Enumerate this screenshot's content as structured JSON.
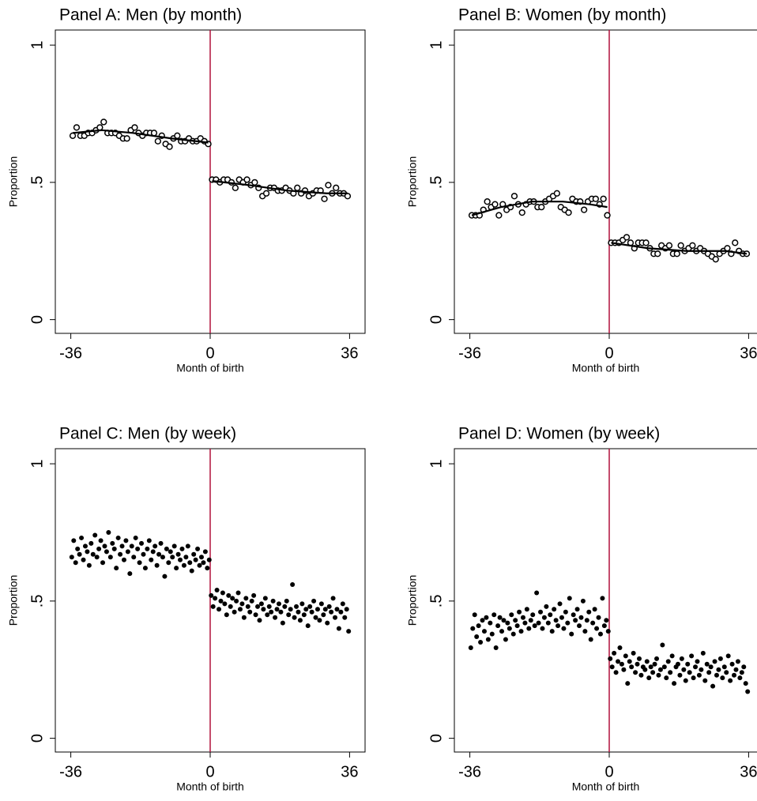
{
  "chart_data": [
    {
      "type": "scatter",
      "title": "Panel A: Men (by month)",
      "x_label": "Month of birth",
      "y_label": "Proportion",
      "xlim": [
        -40,
        40
      ],
      "ylim": [
        -0.05,
        1.055
      ],
      "xticks": [
        -36,
        0,
        36
      ],
      "yticks": [
        0,
        {
          "value": 0.5,
          "label": ".5"
        },
        1
      ],
      "cutoff_line": {
        "x": 0,
        "color": "#b0103c"
      },
      "series": [
        {
          "marker": "hollow",
          "color": "#000000",
          "x": [
            -35.5,
            -34.5,
            -33.5,
            -32.5,
            -31.5,
            -30.5,
            -29.5,
            -28.5,
            -27.5,
            -26.5,
            -25.5,
            -24.5,
            -23.5,
            -22.5,
            -21.5,
            -20.5,
            -19.5,
            -18.5,
            -17.5,
            -16.5,
            -15.5,
            -14.5,
            -13.5,
            -12.5,
            -11.5,
            -10.5,
            -9.5,
            -8.5,
            -7.5,
            -6.5,
            -5.5,
            -4.5,
            -3.5,
            -2.5,
            -1.5,
            -0.5,
            0.5,
            1.5,
            2.5,
            3.5,
            4.5,
            5.5,
            6.5,
            7.5,
            8.5,
            9.5,
            10.5,
            11.5,
            12.5,
            13.5,
            14.5,
            15.5,
            16.5,
            17.5,
            18.5,
            19.5,
            20.5,
            21.5,
            22.5,
            23.5,
            24.5,
            25.5,
            26.5,
            27.5,
            28.5,
            29.5,
            30.5,
            31.5,
            32.5,
            33.5,
            34.5,
            35.5
          ],
          "values": [
            0.67,
            0.7,
            0.67,
            0.67,
            0.68,
            0.68,
            0.69,
            0.7,
            0.72,
            0.68,
            0.68,
            0.68,
            0.67,
            0.66,
            0.66,
            0.69,
            0.7,
            0.68,
            0.67,
            0.68,
            0.68,
            0.68,
            0.65,
            0.67,
            0.64,
            0.63,
            0.66,
            0.67,
            0.65,
            0.65,
            0.66,
            0.65,
            0.65,
            0.66,
            0.65,
            0.64,
            0.51,
            0.51,
            0.5,
            0.51,
            0.51,
            0.5,
            0.48,
            0.51,
            0.5,
            0.51,
            0.49,
            0.5,
            0.48,
            0.45,
            0.46,
            0.48,
            0.48,
            0.47,
            0.47,
            0.48,
            0.47,
            0.46,
            0.48,
            0.46,
            0.47,
            0.45,
            0.46,
            0.47,
            0.47,
            0.44,
            0.49,
            0.46,
            0.48,
            0.46,
            0.46,
            0.45
          ]
        },
        {
          "marker": "line",
          "color": "#000000",
          "x": [
            -35.5,
            -28,
            -20,
            -10,
            -0.5,
            0,
            0.5,
            10,
            20,
            30,
            35.5
          ],
          "values": [
            0.68,
            0.69,
            0.68,
            0.66,
            0.645,
            null,
            0.505,
            0.49,
            0.47,
            0.46,
            0.46
          ]
        }
      ]
    },
    {
      "type": "scatter",
      "title": "Panel B: Women (by month)",
      "x_label": "Month of birth",
      "y_label": "Proportion",
      "xlim": [
        -40,
        40
      ],
      "ylim": [
        -0.05,
        1.055
      ],
      "xticks": [
        -36,
        0,
        36
      ],
      "yticks": [
        0,
        {
          "value": 0.5,
          "label": ".5"
        },
        1
      ],
      "cutoff_line": {
        "x": 0,
        "color": "#b0103c"
      },
      "series": [
        {
          "marker": "hollow",
          "color": "#000000",
          "x": [
            -35.5,
            -34.5,
            -33.5,
            -32.5,
            -31.5,
            -30.5,
            -29.5,
            -28.5,
            -27.5,
            -26.5,
            -25.5,
            -24.5,
            -23.5,
            -22.5,
            -21.5,
            -20.5,
            -19.5,
            -18.5,
            -17.5,
            -16.5,
            -15.5,
            -14.5,
            -13.5,
            -12.5,
            -11.5,
            -10.5,
            -9.5,
            -8.5,
            -7.5,
            -6.5,
            -5.5,
            -4.5,
            -3.5,
            -2.5,
            -1.5,
            -0.5,
            0.5,
            1.5,
            2.5,
            3.5,
            4.5,
            5.5,
            6.5,
            7.5,
            8.5,
            9.5,
            10.5,
            11.5,
            12.5,
            13.5,
            14.5,
            15.5,
            16.5,
            17.5,
            18.5,
            19.5,
            20.5,
            21.5,
            22.5,
            23.5,
            24.5,
            25.5,
            26.5,
            27.5,
            28.5,
            29.5,
            30.5,
            31.5,
            32.5,
            33.5,
            34.5,
            35.5
          ],
          "values": [
            0.38,
            0.38,
            0.38,
            0.4,
            0.43,
            0.41,
            0.42,
            0.38,
            0.42,
            0.4,
            0.41,
            0.45,
            0.42,
            0.39,
            0.42,
            0.43,
            0.43,
            0.41,
            0.41,
            0.43,
            0.44,
            0.45,
            0.46,
            0.41,
            0.4,
            0.39,
            0.44,
            0.43,
            0.43,
            0.4,
            0.43,
            0.44,
            0.44,
            0.42,
            0.44,
            0.38,
            0.28,
            0.28,
            0.28,
            0.29,
            0.3,
            0.28,
            0.26,
            0.28,
            0.28,
            0.28,
            0.26,
            0.24,
            0.24,
            0.27,
            0.26,
            0.27,
            0.24,
            0.24,
            0.27,
            0.25,
            0.26,
            0.27,
            0.25,
            0.26,
            0.25,
            0.24,
            0.23,
            0.22,
            0.24,
            0.25,
            0.26,
            0.24,
            0.28,
            0.25,
            0.24,
            0.24
          ]
        },
        {
          "marker": "line",
          "color": "#000000",
          "x": [
            -35.5,
            -28,
            -20,
            -12,
            -5,
            -0.5,
            0,
            0.5,
            10,
            20,
            30,
            35.5
          ],
          "values": [
            0.38,
            0.41,
            0.43,
            0.43,
            0.42,
            0.41,
            null,
            0.28,
            0.26,
            0.25,
            0.25,
            0.24
          ]
        }
      ]
    },
    {
      "type": "scatter",
      "title": "Panel C: Men (by week)",
      "x_label": "Month of birth",
      "y_label": "Proportion",
      "xlim": [
        -40,
        40
      ],
      "ylim": [
        -0.05,
        1.055
      ],
      "xticks": [
        -36,
        0,
        36
      ],
      "yticks": [
        0,
        {
          "value": 0.5,
          "label": ".5"
        },
        1
      ],
      "cutoff_line": {
        "x": 0,
        "color": "#b0103c"
      },
      "series": [
        {
          "marker": "filled",
          "color": "#000000",
          "x": [
            -35.75,
            -35.25,
            -34.75,
            -34.25,
            -33.75,
            -33.25,
            -32.75,
            -32.25,
            -31.75,
            -31.25,
            -30.75,
            -30.25,
            -29.75,
            -29.25,
            -28.75,
            -28.25,
            -27.75,
            -27.25,
            -26.75,
            -26.25,
            -25.75,
            -25.25,
            -24.75,
            -24.25,
            -23.75,
            -23.25,
            -22.75,
            -22.25,
            -21.75,
            -21.25,
            -20.75,
            -20.25,
            -19.75,
            -19.25,
            -18.75,
            -18.25,
            -17.75,
            -17.25,
            -16.75,
            -16.25,
            -15.75,
            -15.25,
            -14.75,
            -14.25,
            -13.75,
            -13.25,
            -12.75,
            -12.25,
            -11.75,
            -11.25,
            -10.75,
            -10.25,
            -9.75,
            -9.25,
            -8.75,
            -8.25,
            -7.75,
            -7.25,
            -6.75,
            -6.25,
            -5.75,
            -5.25,
            -4.75,
            -4.25,
            -3.75,
            -3.25,
            -2.75,
            -2.25,
            -1.75,
            -1.25,
            -0.75,
            -0.25,
            0.25,
            0.75,
            1.25,
            1.75,
            2.25,
            2.75,
            3.25,
            3.75,
            4.25,
            4.75,
            5.25,
            5.75,
            6.25,
            6.75,
            7.25,
            7.75,
            8.25,
            8.75,
            9.25,
            9.75,
            10.25,
            10.75,
            11.25,
            11.75,
            12.25,
            12.75,
            13.25,
            13.75,
            14.25,
            14.75,
            15.25,
            15.75,
            16.25,
            16.75,
            17.25,
            17.75,
            18.25,
            18.75,
            19.25,
            19.75,
            20.25,
            20.75,
            21.25,
            21.75,
            22.25,
            22.75,
            23.25,
            23.75,
            24.25,
            24.75,
            25.25,
            25.75,
            26.25,
            26.75,
            27.25,
            27.75,
            28.25,
            28.75,
            29.25,
            29.75,
            30.25,
            30.75,
            31.25,
            31.75,
            32.25,
            32.75,
            33.25,
            33.75,
            34.25,
            34.75,
            35.25,
            35.75
          ],
          "values": [
            0.66,
            0.72,
            0.64,
            0.69,
            0.67,
            0.73,
            0.65,
            0.7,
            0.68,
            0.63,
            0.71,
            0.67,
            0.74,
            0.66,
            0.69,
            0.72,
            0.64,
            0.7,
            0.68,
            0.75,
            0.66,
            0.71,
            0.69,
            0.62,
            0.73,
            0.67,
            0.7,
            0.65,
            0.72,
            0.68,
            0.6,
            0.7,
            0.66,
            0.73,
            0.69,
            0.64,
            0.71,
            0.67,
            0.62,
            0.69,
            0.72,
            0.65,
            0.68,
            0.7,
            0.63,
            0.67,
            0.71,
            0.66,
            0.59,
            0.69,
            0.64,
            0.68,
            0.66,
            0.7,
            0.62,
            0.67,
            0.65,
            0.69,
            0.63,
            0.66,
            0.7,
            0.64,
            0.61,
            0.67,
            0.65,
            0.69,
            0.63,
            0.66,
            0.64,
            0.68,
            0.62,
            0.65,
            0.52,
            0.48,
            0.51,
            0.54,
            0.47,
            0.5,
            0.53,
            0.49,
            0.45,
            0.52,
            0.48,
            0.51,
            0.46,
            0.5,
            0.53,
            0.47,
            0.49,
            0.44,
            0.51,
            0.48,
            0.46,
            0.5,
            0.52,
            0.45,
            0.48,
            0.43,
            0.49,
            0.47,
            0.51,
            0.45,
            0.48,
            0.46,
            0.5,
            0.44,
            0.47,
            0.49,
            0.46,
            0.42,
            0.48,
            0.5,
            0.45,
            0.47,
            0.56,
            0.44,
            0.48,
            0.46,
            0.43,
            0.49,
            0.45,
            0.47,
            0.41,
            0.48,
            0.46,
            0.5,
            0.44,
            0.47,
            0.43,
            0.49,
            0.45,
            0.47,
            0.42,
            0.48,
            0.46,
            0.51,
            0.44,
            0.47,
            0.4,
            0.46,
            0.49,
            0.44,
            0.47,
            0.39
          ]
        }
      ]
    },
    {
      "type": "scatter",
      "title": "Panel D: Women (by week)",
      "x_label": "Month of birth",
      "y_label": "Proportion",
      "xlim": [
        -40,
        40
      ],
      "ylim": [
        -0.05,
        1.055
      ],
      "xticks": [
        -36,
        0,
        36
      ],
      "yticks": [
        0,
        {
          "value": 0.5,
          "label": ".5"
        },
        1
      ],
      "cutoff_line": {
        "x": 0,
        "color": "#b0103c"
      },
      "series": [
        {
          "marker": "filled",
          "color": "#000000",
          "x": [
            -35.75,
            -35.25,
            -34.75,
            -34.25,
            -33.75,
            -33.25,
            -32.75,
            -32.25,
            -31.75,
            -31.25,
            -30.75,
            -30.25,
            -29.75,
            -29.25,
            -28.75,
            -28.25,
            -27.75,
            -27.25,
            -26.75,
            -26.25,
            -25.75,
            -25.25,
            -24.75,
            -24.25,
            -23.75,
            -23.25,
            -22.75,
            -22.25,
            -21.75,
            -21.25,
            -20.75,
            -20.25,
            -19.75,
            -19.25,
            -18.75,
            -18.25,
            -17.75,
            -17.25,
            -16.75,
            -16.25,
            -15.75,
            -15.25,
            -14.75,
            -14.25,
            -13.75,
            -13.25,
            -12.75,
            -12.25,
            -11.75,
            -11.25,
            -10.75,
            -10.25,
            -9.75,
            -9.25,
            -8.75,
            -8.25,
            -7.75,
            -7.25,
            -6.75,
            -6.25,
            -5.75,
            -5.25,
            -4.75,
            -4.25,
            -3.75,
            -3.25,
            -2.75,
            -2.25,
            -1.75,
            -1.25,
            -0.75,
            -0.25,
            0.25,
            0.75,
            1.25,
            1.75,
            2.25,
            2.75,
            3.25,
            3.75,
            4.25,
            4.75,
            5.25,
            5.75,
            6.25,
            6.75,
            7.25,
            7.75,
            8.25,
            8.75,
            9.25,
            9.75,
            10.25,
            10.75,
            11.25,
            11.75,
            12.25,
            12.75,
            13.25,
            13.75,
            14.25,
            14.75,
            15.25,
            15.75,
            16.25,
            16.75,
            17.25,
            17.75,
            18.25,
            18.75,
            19.25,
            19.75,
            20.25,
            20.75,
            21.25,
            21.75,
            22.25,
            22.75,
            23.25,
            23.75,
            24.25,
            24.75,
            25.25,
            25.75,
            26.25,
            26.75,
            27.25,
            27.75,
            28.25,
            28.75,
            29.25,
            29.75,
            30.25,
            30.75,
            31.25,
            31.75,
            32.25,
            32.75,
            33.25,
            33.75,
            34.25,
            34.75,
            35.25,
            35.75
          ],
          "values": [
            0.33,
            0.4,
            0.45,
            0.37,
            0.41,
            0.35,
            0.43,
            0.39,
            0.44,
            0.36,
            0.42,
            0.38,
            0.45,
            0.33,
            0.41,
            0.44,
            0.39,
            0.43,
            0.36,
            0.42,
            0.4,
            0.45,
            0.38,
            0.43,
            0.41,
            0.46,
            0.39,
            0.44,
            0.42,
            0.47,
            0.4,
            0.43,
            0.45,
            0.41,
            0.53,
            0.42,
            0.46,
            0.4,
            0.44,
            0.48,
            0.42,
            0.45,
            0.39,
            0.47,
            0.43,
            0.41,
            0.49,
            0.44,
            0.4,
            0.46,
            0.42,
            0.51,
            0.38,
            0.45,
            0.43,
            0.47,
            0.41,
            0.44,
            0.5,
            0.39,
            0.43,
            0.46,
            0.36,
            0.42,
            0.47,
            0.4,
            0.44,
            0.38,
            0.51,
            0.41,
            0.43,
            0.39,
            0.29,
            0.26,
            0.31,
            0.24,
            0.28,
            0.33,
            0.27,
            0.25,
            0.3,
            0.2,
            0.28,
            0.26,
            0.31,
            0.24,
            0.27,
            0.29,
            0.23,
            0.26,
            0.25,
            0.28,
            0.22,
            0.26,
            0.24,
            0.27,
            0.29,
            0.23,
            0.25,
            0.34,
            0.26,
            0.22,
            0.28,
            0.24,
            0.3,
            0.2,
            0.26,
            0.27,
            0.23,
            0.29,
            0.25,
            0.21,
            0.27,
            0.24,
            0.3,
            0.22,
            0.26,
            0.28,
            0.23,
            0.25,
            0.31,
            0.21,
            0.27,
            0.24,
            0.26,
            0.19,
            0.28,
            0.23,
            0.25,
            0.29,
            0.22,
            0.26,
            0.24,
            0.3,
            0.21,
            0.27,
            0.23,
            0.25,
            0.28,
            0.22,
            0.24,
            0.26,
            0.2,
            0.17
          ]
        }
      ]
    }
  ]
}
